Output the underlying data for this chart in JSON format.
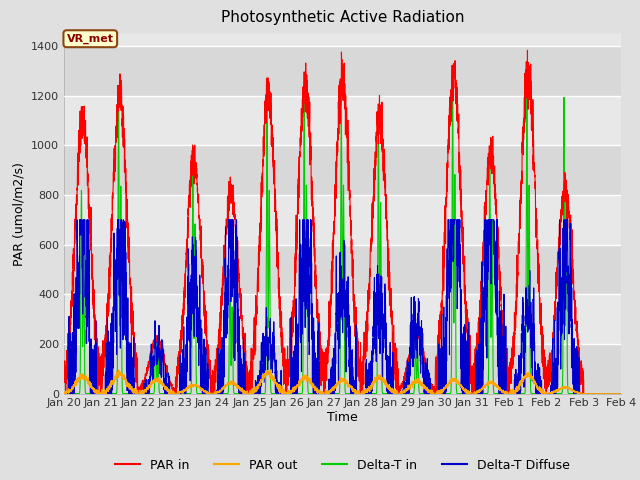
{
  "title": "Photosynthetic Active Radiation",
  "ylabel": "PAR (umol/m2/s)",
  "xlabel": "Time",
  "annotation": "VR_met",
  "ylim": [
    0,
    1450
  ],
  "figsize": [
    6.4,
    4.8
  ],
  "dpi": 100,
  "bg_color": "#e0e0e0",
  "plot_bg_color": "#e8e8e8",
  "num_days": 15,
  "day_labels": [
    "Jan 20",
    "Jan 21",
    "Jan 22",
    "Jan 23",
    "Jan 24",
    "Jan 25",
    "Jan 26",
    "Jan 27",
    "Jan 28",
    "Jan 29",
    "Jan 30",
    "Jan 31",
    "Feb 1",
    "Feb 2",
    "Feb 3",
    "Feb 4"
  ],
  "par_in_peaks": [
    1100,
    1190,
    220,
    940,
    810,
    1210,
    1250,
    1270,
    1110,
    240,
    1290,
    970,
    1290,
    840,
    0
  ],
  "par_out_peaks": [
    70,
    80,
    55,
    35,
    45,
    85,
    65,
    55,
    65,
    50,
    55,
    45,
    75,
    25,
    0
  ],
  "delta_t_peaks": [
    820,
    1200,
    220,
    980,
    500,
    1170,
    1200,
    1200,
    1100,
    220,
    1260,
    1000,
    1200,
    1200,
    0
  ],
  "delta_d_peaks": [
    500,
    460,
    130,
    340,
    420,
    160,
    450,
    310,
    280,
    200,
    620,
    610,
    230,
    420,
    0
  ],
  "par_in_color": "#ff0000",
  "par_out_color": "#ffa500",
  "delta_t_color": "#00cc00",
  "delta_d_color": "#0000cc"
}
